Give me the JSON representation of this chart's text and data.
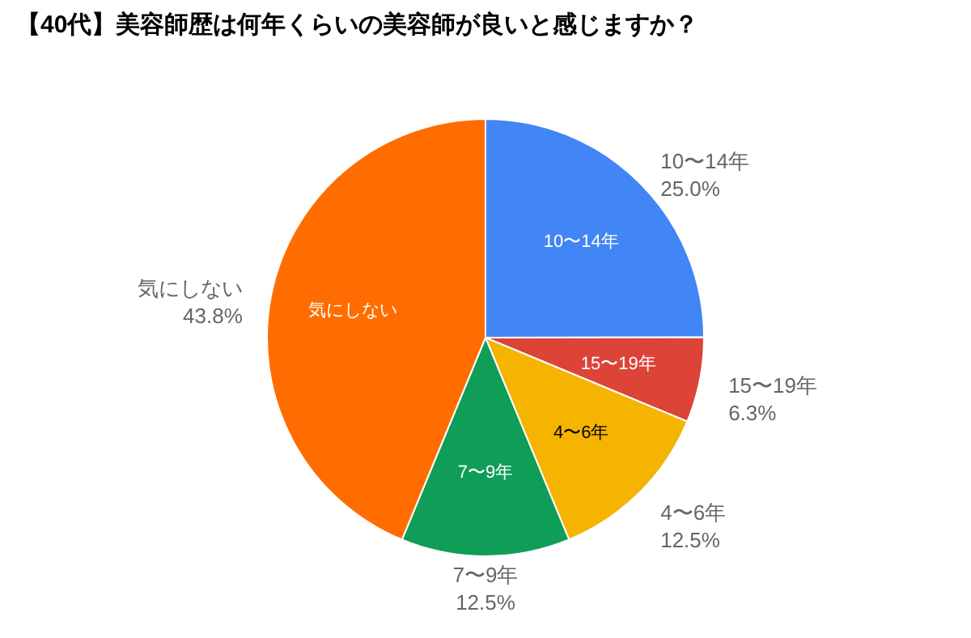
{
  "chart_data": {
    "type": "pie",
    "title": "【40代】美容師歴は何年くらいの美容師が良いと感じますか？",
    "categories": [
      "10〜14年",
      "15〜19年",
      "4〜6年",
      "7〜9年",
      "気にしない"
    ],
    "values": [
      25.0,
      6.3,
      12.5,
      12.5,
      43.8
    ],
    "value_labels": [
      "25.0%",
      "6.3%",
      "12.5%",
      "12.5%",
      "43.8%"
    ],
    "colors": [
      "#4285f4",
      "#db4437",
      "#f4b400",
      "#0f9d58",
      "#ff6d00"
    ],
    "legend": false
  }
}
